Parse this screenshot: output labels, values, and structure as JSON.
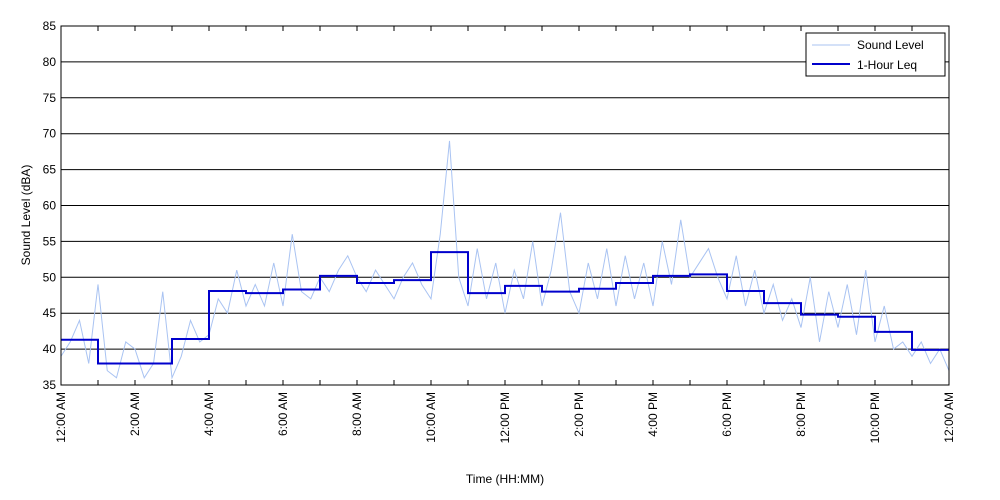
{
  "chart_data": {
    "type": "line",
    "title": "",
    "xlabel": "Time (HH:MM)",
    "ylabel": "Sound Level (dBA)",
    "xlim": [
      0,
      24
    ],
    "ylim": [
      35,
      85
    ],
    "grid": "horizontal",
    "legend_position": "top-right",
    "y_ticks": [
      "35",
      "40",
      "45",
      "50",
      "55",
      "60",
      "65",
      "70",
      "75",
      "80",
      "85"
    ],
    "x_ticks": [
      {
        "hour": 0,
        "label": "12:00 AM"
      },
      {
        "hour": 2,
        "label": "2:00 AM"
      },
      {
        "hour": 4,
        "label": "4:00 AM"
      },
      {
        "hour": 6,
        "label": "6:00 AM"
      },
      {
        "hour": 8,
        "label": "8:00 AM"
      },
      {
        "hour": 10,
        "label": "10:00 AM"
      },
      {
        "hour": 12,
        "label": "12:00 PM"
      },
      {
        "hour": 14,
        "label": "2:00 PM"
      },
      {
        "hour": 16,
        "label": "4:00 PM"
      },
      {
        "hour": 18,
        "label": "6:00 PM"
      },
      {
        "hour": 20,
        "label": "8:00 PM"
      },
      {
        "hour": 22,
        "label": "10:00 PM"
      },
      {
        "hour": 24,
        "label": "12:00 AM"
      }
    ],
    "series": [
      {
        "name": "Sound Level",
        "color": "#a9c3f2",
        "x": [
          0,
          0.25,
          0.5,
          0.75,
          1.0,
          1.25,
          1.5,
          1.75,
          2.0,
          2.25,
          2.5,
          2.75,
          3.0,
          3.25,
          3.5,
          3.75,
          4.0,
          4.25,
          4.5,
          4.75,
          5.0,
          5.25,
          5.5,
          5.75,
          6.0,
          6.25,
          6.5,
          6.75,
          7.0,
          7.25,
          7.5,
          7.75,
          8.0,
          8.25,
          8.5,
          8.75,
          9.0,
          9.25,
          9.5,
          9.75,
          10.0,
          10.25,
          10.5,
          10.75,
          11.0,
          11.25,
          11.5,
          11.75,
          12.0,
          12.25,
          12.5,
          12.75,
          13.0,
          13.25,
          13.5,
          13.75,
          14.0,
          14.25,
          14.5,
          14.75,
          15.0,
          15.25,
          15.5,
          15.75,
          16.0,
          16.25,
          16.5,
          16.75,
          17.0,
          17.25,
          17.5,
          17.75,
          18.0,
          18.25,
          18.5,
          18.75,
          19.0,
          19.25,
          19.5,
          19.75,
          20.0,
          20.25,
          20.5,
          20.75,
          21.0,
          21.25,
          21.5,
          21.75,
          22.0,
          22.25,
          22.5,
          22.75,
          23.0,
          23.25,
          23.5,
          23.75,
          24.0
        ],
        "values": [
          39,
          41,
          44,
          38,
          49,
          37,
          36,
          41,
          40,
          36,
          38,
          48,
          36,
          39,
          44,
          41,
          42,
          47,
          45,
          51,
          46,
          49,
          46,
          52,
          46,
          56,
          48,
          47,
          50,
          48,
          51,
          53,
          50,
          48,
          51,
          49,
          47,
          50,
          52,
          49,
          47,
          56,
          69,
          50,
          46,
          54,
          47,
          52,
          45,
          51,
          47,
          55,
          46,
          51,
          59,
          48,
          45,
          52,
          47,
          54,
          46,
          53,
          47,
          52,
          46,
          55,
          49,
          58,
          50,
          52,
          54,
          50,
          47,
          53,
          46,
          51,
          45,
          49,
          44,
          47,
          43,
          50,
          41,
          48,
          43,
          49,
          42,
          51,
          41,
          46,
          40,
          41,
          39,
          41,
          38,
          40,
          37
        ]
      },
      {
        "name": "1-Hour Leq",
        "color": "#0000cc",
        "step": true,
        "x": [
          0,
          1,
          2,
          3,
          4,
          5,
          6,
          7,
          8,
          9,
          10,
          11,
          12,
          13,
          14,
          15,
          16,
          17,
          18,
          19,
          20,
          21,
          22,
          23,
          24
        ],
        "values": [
          41.3,
          38.0,
          38.0,
          41.4,
          48.1,
          47.8,
          48.3,
          50.2,
          49.2,
          49.6,
          53.5,
          47.8,
          48.8,
          48.0,
          48.4,
          49.2,
          50.2,
          50.4,
          48.1,
          46.4,
          44.8,
          44.5,
          42.4,
          39.9,
          39.9
        ]
      }
    ]
  }
}
